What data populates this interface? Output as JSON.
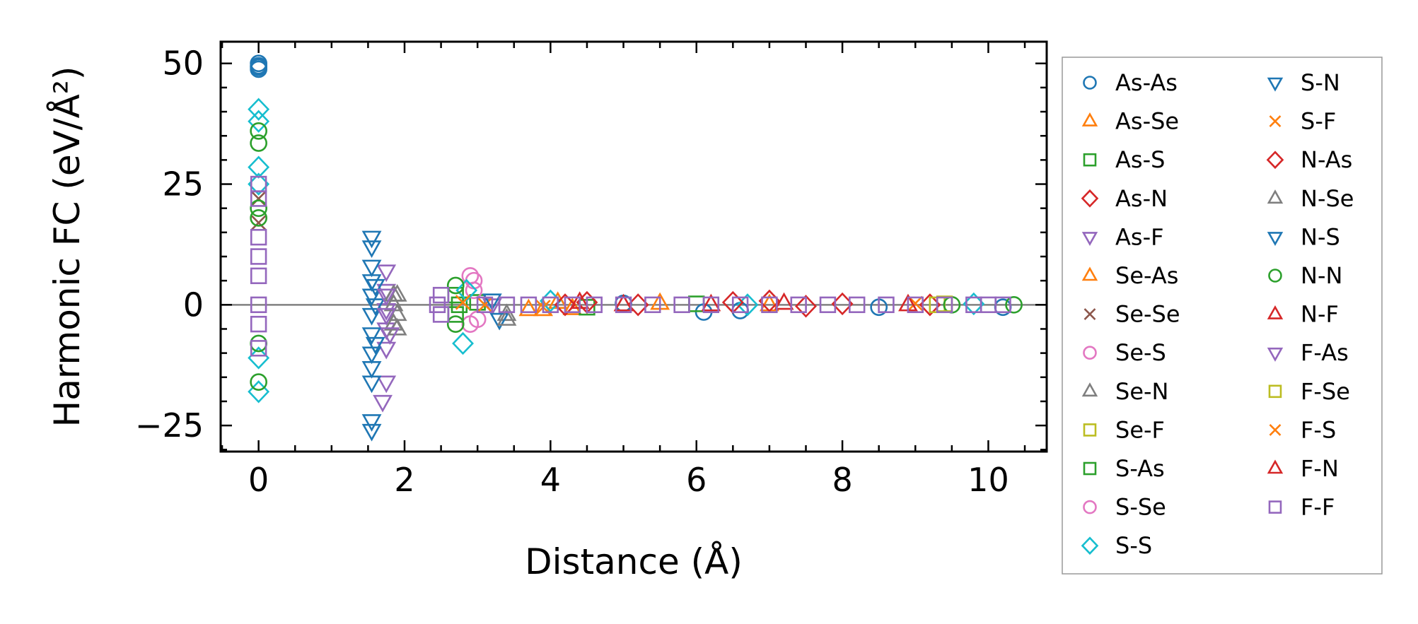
{
  "chart_data": {
    "type": "scatter",
    "title": "",
    "xlabel": "Distance (Å)",
    "ylabel": "Harmonic FC (eV/Å²)",
    "xlim": [
      -0.52,
      10.8
    ],
    "ylim": [
      -30.4,
      54.5
    ],
    "xticks": [
      0,
      2,
      4,
      6,
      8,
      10
    ],
    "xtick_labels": [
      "0",
      "2",
      "4",
      "6",
      "8",
      "10"
    ],
    "yticks": [
      -25,
      0,
      25,
      50
    ],
    "ytick_labels": [
      "−25",
      "0",
      "25",
      "50"
    ],
    "zero_line": true,
    "grid": false,
    "legend_placement": "outside-right",
    "legend_columns": 2,
    "series": [
      {
        "name": "As-As",
        "marker": "circle",
        "color": "#1f77b4",
        "points": [
          [
            0,
            50
          ],
          [
            0,
            49.5
          ],
          [
            0,
            48.8
          ],
          [
            0,
            49.2
          ],
          [
            6.1,
            -1.5
          ],
          [
            6.6,
            -1.2
          ],
          [
            8.5,
            -0.5
          ],
          [
            10.2,
            -0.5
          ],
          [
            5,
            0.3
          ]
        ]
      },
      {
        "name": "As-Se",
        "marker": "triangle-up",
        "color": "#ff7f0e",
        "points": [
          [
            3.9,
            -1
          ],
          [
            4.3,
            -0.8
          ],
          [
            5.5,
            0.3
          ],
          [
            7,
            0
          ]
        ]
      },
      {
        "name": "As-S",
        "marker": "square",
        "color": "#2ca02c",
        "points": [
          [
            3.0,
            0.5
          ],
          [
            4.5,
            -0.5
          ],
          [
            6,
            0.2
          ]
        ]
      },
      {
        "name": "As-N",
        "marker": "diamond",
        "color": "#d62728",
        "points": [
          [
            4.5,
            0.5
          ],
          [
            5.2,
            0
          ],
          [
            7,
            0.8
          ],
          [
            8,
            0.2
          ],
          [
            9.2,
            0
          ]
        ]
      },
      {
        "name": "As-F",
        "marker": "triangle-down",
        "color": "#9467bd",
        "points": [
          [
            1.75,
            7
          ],
          [
            1.75,
            3
          ],
          [
            1.75,
            -1
          ],
          [
            1.75,
            -5
          ],
          [
            1.75,
            -9
          ],
          [
            1.75,
            -16
          ],
          [
            1.7,
            -20
          ],
          [
            3.2,
            0
          ]
        ]
      },
      {
        "name": "Se-As",
        "marker": "triangle-up",
        "color": "#ff7f0e",
        "points": [
          [
            3.7,
            -1
          ],
          [
            4.1,
            0.5
          ]
        ]
      },
      {
        "name": "Se-Se",
        "marker": "x",
        "color": "#8c564b",
        "points": [
          [
            0,
            17
          ],
          [
            0,
            22
          ]
        ]
      },
      {
        "name": "Se-S",
        "marker": "circle",
        "color": "#e377c2",
        "points": [
          [
            2.9,
            6
          ],
          [
            2.9,
            -4
          ],
          [
            2.95,
            3
          ]
        ]
      },
      {
        "name": "Se-N",
        "marker": "triangle-up",
        "color": "#7f7f7f",
        "points": [
          [
            1.85,
            -4
          ],
          [
            1.85,
            0
          ],
          [
            1.85,
            2
          ],
          [
            3.4,
            -2
          ]
        ]
      },
      {
        "name": "Se-F",
        "marker": "square",
        "color": "#bcbd22",
        "points": [
          [
            9.3,
            0
          ]
        ]
      },
      {
        "name": "S-As",
        "marker": "square",
        "color": "#2ca02c",
        "points": [
          [
            2.7,
            2
          ],
          [
            2.7,
            -2
          ],
          [
            2.75,
            0
          ]
        ]
      },
      {
        "name": "S-Se",
        "marker": "circle",
        "color": "#e377c2",
        "points": [
          [
            2.95,
            5
          ],
          [
            3.0,
            -3
          ]
        ]
      },
      {
        "name": "S-S",
        "marker": "diamond",
        "color": "#17becf",
        "points": [
          [
            0,
            40.5
          ],
          [
            0,
            38
          ],
          [
            0,
            28.5
          ],
          [
            0,
            25
          ],
          [
            0,
            -11
          ],
          [
            0,
            -18
          ],
          [
            2.8,
            -8
          ],
          [
            2.85,
            3
          ],
          [
            4.0,
            0.8
          ],
          [
            6.7,
            0
          ],
          [
            9.8,
            0.2
          ]
        ]
      },
      {
        "name": "S-N",
        "marker": "triangle-down",
        "color": "#1f77b4",
        "points": [
          [
            1.55,
            14
          ],
          [
            1.55,
            12
          ],
          [
            1.55,
            8
          ],
          [
            1.55,
            5
          ],
          [
            1.55,
            2
          ],
          [
            1.55,
            -2
          ],
          [
            1.55,
            -6
          ],
          [
            1.55,
            -10
          ],
          [
            1.55,
            -13
          ],
          [
            1.55,
            -16
          ],
          [
            1.55,
            -24
          ],
          [
            1.55,
            -26
          ],
          [
            3.3,
            -3
          ]
        ]
      },
      {
        "name": "S-F",
        "marker": "x",
        "color": "#ff7f0e",
        "points": [
          [
            3.1,
            0
          ],
          [
            9,
            0.3
          ]
        ]
      },
      {
        "name": "N-As",
        "marker": "diamond",
        "color": "#d62728",
        "points": [
          [
            4.2,
            0
          ],
          [
            6.5,
            0.5
          ],
          [
            7.5,
            -0.3
          ]
        ]
      },
      {
        "name": "N-Se",
        "marker": "triangle-up",
        "color": "#7f7f7f",
        "points": [
          [
            1.9,
            -5
          ],
          [
            1.9,
            -2
          ],
          [
            1.9,
            2
          ],
          [
            3.4,
            -3
          ]
        ]
      },
      {
        "name": "N-S",
        "marker": "triangle-down",
        "color": "#1f77b4",
        "points": [
          [
            1.6,
            4
          ],
          [
            1.6,
            -8
          ],
          [
            1.6,
            0
          ],
          [
            3.2,
            1
          ]
        ]
      },
      {
        "name": "N-N",
        "marker": "circle",
        "color": "#2ca02c",
        "points": [
          [
            0,
            36
          ],
          [
            0,
            33.5
          ],
          [
            0,
            20
          ],
          [
            0,
            18
          ],
          [
            0,
            -8
          ],
          [
            0,
            -16
          ],
          [
            2.7,
            4
          ],
          [
            2.7,
            -4
          ],
          [
            9.5,
            0
          ],
          [
            10.35,
            0
          ]
        ]
      },
      {
        "name": "N-F",
        "marker": "triangle-up",
        "color": "#d62728",
        "points": [
          [
            5,
            0
          ],
          [
            7.2,
            0.3
          ],
          [
            8.9,
            0
          ]
        ]
      },
      {
        "name": "F-As",
        "marker": "triangle-down",
        "color": "#9467bd",
        "points": [
          [
            1.75,
            -2
          ],
          [
            1.75,
            2
          ],
          [
            1.8,
            -6
          ]
        ]
      },
      {
        "name": "F-Se",
        "marker": "square",
        "color": "#bcbd22",
        "points": [
          [
            9.4,
            0.2
          ]
        ]
      },
      {
        "name": "F-S",
        "marker": "x",
        "color": "#ff7f0e",
        "points": [
          [
            2.8,
            0.5
          ],
          [
            3.9,
            -0.5
          ]
        ]
      },
      {
        "name": "F-N",
        "marker": "triangle-up",
        "color": "#d62728",
        "points": [
          [
            4.4,
            0.5
          ],
          [
            6.2,
            0
          ]
        ]
      },
      {
        "name": "F-F",
        "marker": "square",
        "color": "#9467bd",
        "points": [
          [
            0,
            25
          ],
          [
            0,
            22
          ],
          [
            0,
            14
          ],
          [
            0,
            10
          ],
          [
            0,
            6
          ],
          [
            0,
            0
          ],
          [
            0,
            -4
          ],
          [
            0,
            -9
          ],
          [
            2.45,
            0
          ],
          [
            2.5,
            -2
          ],
          [
            2.5,
            2
          ],
          [
            3.1,
            0
          ],
          [
            3.4,
            0
          ],
          [
            3.7,
            0
          ],
          [
            4.0,
            0
          ],
          [
            4.3,
            0
          ],
          [
            4.6,
            0
          ],
          [
            5.0,
            0
          ],
          [
            5.4,
            0
          ],
          [
            5.8,
            0
          ],
          [
            6.2,
            0
          ],
          [
            6.6,
            0
          ],
          [
            7.0,
            0
          ],
          [
            7.4,
            0
          ],
          [
            7.8,
            0
          ],
          [
            8.2,
            0
          ],
          [
            8.6,
            0
          ],
          [
            9.0,
            0
          ],
          [
            9.4,
            0
          ],
          [
            9.8,
            0
          ],
          [
            10.0,
            0
          ],
          [
            10.2,
            0
          ]
        ]
      }
    ]
  }
}
